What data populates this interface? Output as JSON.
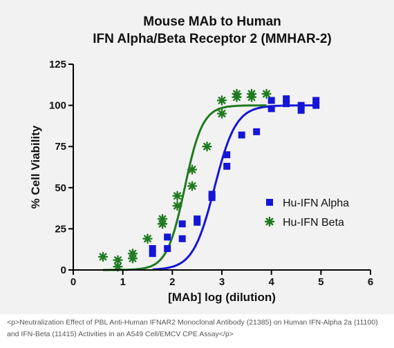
{
  "chart_data": {
    "type": "scatter",
    "title": [
      "Mouse MAb to Human",
      "IFN Alpha/Beta Receptor 2 (MMHAR-2)"
    ],
    "xlabel": "[MAb] log (dilution)",
    "ylabel": "% Cell Viability",
    "xlim": [
      0,
      6
    ],
    "ylim": [
      0,
      125
    ],
    "x_ticks": [
      "0",
      "1",
      "2",
      "3",
      "4",
      "5",
      "6"
    ],
    "y_ticks": [
      "0",
      "25",
      "50",
      "75",
      "100",
      "125"
    ],
    "legend_position": "right-middle",
    "series": [
      {
        "name": "Hu-IFN Alpha",
        "color": "#1515d8",
        "marker": "square",
        "points": [
          [
            1.6,
            10
          ],
          [
            1.6,
            13
          ],
          [
            1.9,
            13
          ],
          [
            1.9,
            20
          ],
          [
            2.2,
            19
          ],
          [
            2.2,
            28
          ],
          [
            2.5,
            29
          ],
          [
            2.5,
            31
          ],
          [
            2.8,
            44
          ],
          [
            2.8,
            46
          ],
          [
            3.1,
            63
          ],
          [
            3.1,
            70
          ],
          [
            3.4,
            82
          ],
          [
            3.7,
            84
          ],
          [
            4.0,
            98
          ],
          [
            4.0,
            103
          ],
          [
            4.3,
            101
          ],
          [
            4.3,
            104
          ],
          [
            4.6,
            97
          ],
          [
            4.6,
            100
          ],
          [
            4.9,
            100
          ],
          [
            4.9,
            103
          ]
        ],
        "fit": {
          "bottom": 0,
          "top": 100,
          "ec50": 2.85,
          "hill": 1.0
        }
      },
      {
        "name": "Hu-IFN Beta",
        "color": "#1e7a1e",
        "marker": "star",
        "points": [
          [
            0.6,
            8
          ],
          [
            0.9,
            2
          ],
          [
            0.9,
            6
          ],
          [
            1.2,
            7
          ],
          [
            1.2,
            10
          ],
          [
            1.5,
            19
          ],
          [
            1.8,
            28
          ],
          [
            1.8,
            31
          ],
          [
            2.1,
            39
          ],
          [
            2.1,
            45
          ],
          [
            2.4,
            51
          ],
          [
            2.4,
            61
          ],
          [
            2.7,
            75
          ],
          [
            3.0,
            95
          ],
          [
            3.0,
            103
          ],
          [
            3.3,
            105
          ],
          [
            3.3,
            107
          ],
          [
            3.6,
            105
          ],
          [
            3.6,
            107
          ],
          [
            3.9,
            107
          ]
        ],
        "fit": {
          "bottom": 0,
          "top": 100,
          "ec50": 2.25,
          "hill": 1.2
        }
      }
    ]
  },
  "caption": "<p>Neutralization Effect of PBL Anti-Human IFNAR2 Monoclonal Antibody (21385) on Human IFN-Alpha 2a (11100) and IFN-Beta (11415) Activities in an A549 Cell/EMCV CPE Assay</p>"
}
